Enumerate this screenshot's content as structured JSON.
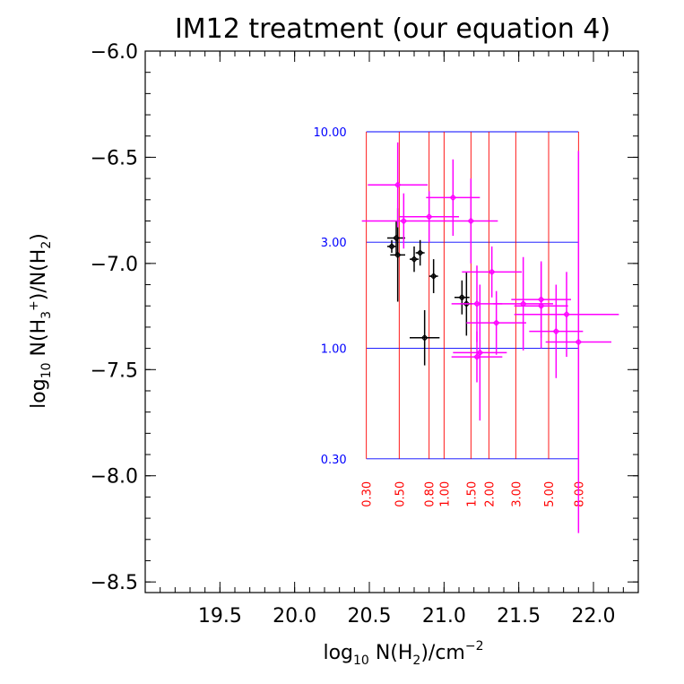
{
  "chart_data": {
    "type": "scatter",
    "title": "IM12 treatment (our equation 4)",
    "xlabel": {
      "pre": "log",
      "sub": "10",
      "post": " N(H",
      "sub2": "2",
      "end": ")/cm",
      "sup": "−2"
    },
    "ylabel": {
      "pre": "log",
      "sub": "10",
      "mid": " N(H",
      "sub2": "3",
      "sup": "+",
      "mid2": ")/N(H",
      "sub3": "2",
      "end": ")"
    },
    "xlim": [
      19.0,
      22.3
    ],
    "ylim": [
      -8.55,
      -6.0
    ],
    "x_ticks": [
      19.5,
      20.0,
      20.5,
      21.0,
      21.5,
      22.0
    ],
    "x_tick_labels": [
      "19.5",
      "20.0",
      "20.5",
      "21.0",
      "21.5",
      "22.0"
    ],
    "y_ticks": [
      -6.0,
      -6.5,
      -7.0,
      -7.5,
      -8.0,
      -8.5
    ],
    "y_tick_labels": [
      "−6.0",
      "−6.5",
      "−7.0",
      "−7.5",
      "−8.0",
      "−8.5"
    ],
    "grid": {
      "x_range": [
        20.48,
        21.9
      ],
      "y_range": [
        -7.92,
        -6.38
      ],
      "horizontal_lines": [
        {
          "y": -6.38,
          "label": "10.00"
        },
        {
          "y": -6.9,
          "label": "3.00"
        },
        {
          "y": -7.4,
          "label": "1.00"
        },
        {
          "y": -7.92,
          "label": "0.30"
        }
      ],
      "vertical_lines": [
        {
          "x": 20.48,
          "label": "0.30"
        },
        {
          "x": 20.7,
          "label": "0.50"
        },
        {
          "x": 20.9,
          "label": "0.80"
        },
        {
          "x": 21.0,
          "label": "1.00"
        },
        {
          "x": 21.18,
          "label": "1.50"
        },
        {
          "x": 21.3,
          "label": "2.00"
        },
        {
          "x": 21.48,
          "label": "3.00"
        },
        {
          "x": 21.7,
          "label": "5.00"
        },
        {
          "x": 21.9,
          "label": "8.00"
        }
      ]
    },
    "series": [
      {
        "color": "#000000",
        "points": [
          {
            "x": 20.65,
            "y": -6.92,
            "xerr": 0.03,
            "yerr": 0.03
          },
          {
            "x": 20.68,
            "y": -6.88,
            "xerr": 0.06,
            "yerr": 0.08
          },
          {
            "x": 20.69,
            "y": -6.96,
            "xerr": 0.05,
            "yerr": 0.22
          },
          {
            "x": 20.8,
            "y": -6.98,
            "xerr": 0.03,
            "yerr": 0.06
          },
          {
            "x": 20.84,
            "y": -6.95,
            "xerr": 0.03,
            "yerr": 0.06
          },
          {
            "x": 20.93,
            "y": -7.06,
            "xerr": 0.03,
            "yerr": 0.08
          },
          {
            "x": 20.87,
            "y": -7.35,
            "xerr": 0.1,
            "yerr": 0.13
          },
          {
            "x": 21.12,
            "y": -7.16,
            "xerr": 0.05,
            "yerr": 0.08
          },
          {
            "x": 21.15,
            "y": -7.19,
            "xerr": 0.04,
            "yerr": 0.15
          }
        ]
      },
      {
        "color": "#ff00ff",
        "points": [
          {
            "x": 20.69,
            "y": -6.63,
            "xerr": 0.2,
            "yerr": 0.2
          },
          {
            "x": 20.73,
            "y": -6.8,
            "xerr": 0.28,
            "yerr": 0.13
          },
          {
            "x": 20.9,
            "y": -6.78,
            "xerr": 0.2,
            "yerr": 0.12
          },
          {
            "x": 21.06,
            "y": -6.69,
            "xerr": 0.18,
            "yerr": 0.18
          },
          {
            "x": 21.18,
            "y": -6.8,
            "xerr": 0.18,
            "yerr": 0.2
          },
          {
            "x": 21.32,
            "y": -7.04,
            "xerr": 0.2,
            "yerr": 0.12
          },
          {
            "x": 21.22,
            "y": -7.19,
            "xerr": 0.17,
            "yerr": 0.18
          },
          {
            "x": 21.22,
            "y": -7.44,
            "xerr": 0.17,
            "yerr": 0.12
          },
          {
            "x": 21.24,
            "y": -7.42,
            "xerr": 0.18,
            "yerr": 0.32
          },
          {
            "x": 21.35,
            "y": -7.28,
            "xerr": 0.2,
            "yerr": 0.15
          },
          {
            "x": 21.53,
            "y": -7.19,
            "xerr": 0.2,
            "yerr": 0.22
          },
          {
            "x": 21.65,
            "y": -7.17,
            "xerr": 0.2,
            "yerr": 0.18
          },
          {
            "x": 21.65,
            "y": -7.2,
            "xerr": 0.18,
            "yerr": 0.2
          },
          {
            "x": 21.75,
            "y": -7.32,
            "xerr": 0.18,
            "yerr": 0.22
          },
          {
            "x": 21.82,
            "y": -7.24,
            "xerr": 0.35,
            "yerr": 0.2
          },
          {
            "x": 21.9,
            "y": -7.37,
            "xerr": 0.22,
            "yerr": 0.9
          }
        ]
      }
    ]
  }
}
